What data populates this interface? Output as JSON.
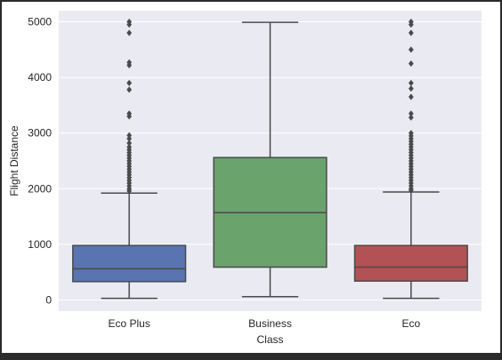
{
  "chart_data": {
    "type": "box",
    "xlabel": "Class",
    "ylabel": "Flight Distance",
    "ylim": [
      -200,
      5200
    ],
    "yticks": [
      0,
      1000,
      2000,
      3000,
      4000,
      5000
    ],
    "grid": true,
    "categories": [
      "Eco Plus",
      "Business",
      "Eco"
    ],
    "boxes": [
      {
        "category": "Eco Plus",
        "color": "#5974b0",
        "whisker_low": 30,
        "q1": 330,
        "median": 560,
        "q3": 980,
        "whisker_high": 1920,
        "outliers": [
          1960,
          2000,
          2050,
          2100,
          2150,
          2200,
          2250,
          2300,
          2350,
          2400,
          2450,
          2500,
          2550,
          2600,
          2650,
          2700,
          2750,
          2820,
          2900,
          2960,
          3300,
          3350,
          3780,
          3900,
          4220,
          4270,
          4800,
          4950,
          5000
        ]
      },
      {
        "category": "Business",
        "color": "#6aa36c",
        "whisker_low": 60,
        "q1": 590,
        "median": 1570,
        "q3": 2560,
        "whisker_high": 4990,
        "outliers": []
      },
      {
        "category": "Eco",
        "color": "#b25254",
        "whisker_low": 30,
        "q1": 340,
        "median": 590,
        "q3": 980,
        "whisker_high": 1940,
        "outliers": [
          1970,
          2000,
          2050,
          2100,
          2150,
          2200,
          2250,
          2300,
          2350,
          2400,
          2450,
          2500,
          2550,
          2600,
          2650,
          2700,
          2750,
          2800,
          2850,
          2900,
          2950,
          3000,
          3280,
          3350,
          3650,
          3800,
          3900,
          4250,
          4500,
          4800,
          4950,
          5000
        ]
      }
    ]
  }
}
